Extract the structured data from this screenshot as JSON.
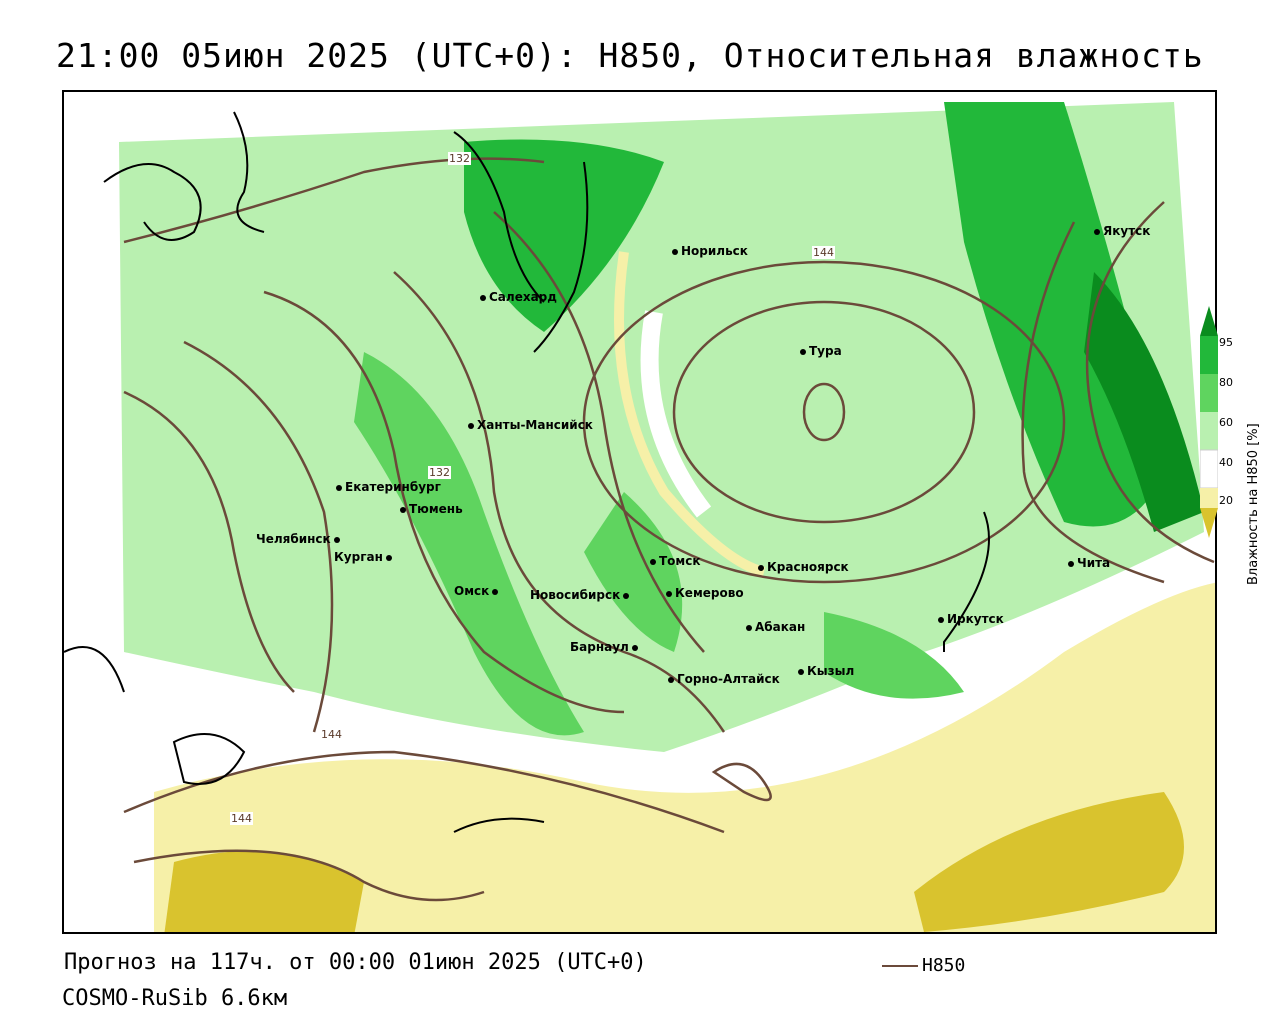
{
  "title": "21:00 05июн 2025 (UTC+0): H850, Относительная влажность",
  "footer": {
    "forecast": "Прогноз на 117ч. от 00:00 01июн 2025 (UTC+0)",
    "model": "COSMO-RuSib 6.6км"
  },
  "legend": {
    "line_label": "H850",
    "line_color": "#6b4a3a"
  },
  "colorbar": {
    "label": "Влажность на H850 [%]",
    "ticks": [
      "95",
      "80",
      "60",
      "40",
      "20"
    ],
    "colors": [
      "#0a8c1e",
      "#22b83a",
      "#5fd45f",
      "#b9f0b0",
      "#ffffff",
      "#f6f0a8",
      "#d9c32e"
    ]
  },
  "contour_labels": [
    "132",
    "132",
    "144",
    "144",
    "144"
  ],
  "cities": [
    {
      "name": "Якутск"
    },
    {
      "name": "Норильск"
    },
    {
      "name": "Салехард"
    },
    {
      "name": "Тура"
    },
    {
      "name": "Ханты-Мансийск"
    },
    {
      "name": "Екатеринбург"
    },
    {
      "name": "Тюмень"
    },
    {
      "name": "Челябинск"
    },
    {
      "name": "Курган"
    },
    {
      "name": "Омск"
    },
    {
      "name": "Новосибирск"
    },
    {
      "name": "Томск"
    },
    {
      "name": "Кемерово"
    },
    {
      "name": "Красноярск"
    },
    {
      "name": "Абакан"
    },
    {
      "name": "Барнаул"
    },
    {
      "name": "Горно-Алтайск"
    },
    {
      "name": "Кызыл"
    },
    {
      "name": "Иркутск"
    },
    {
      "name": "Чита"
    }
  ]
}
